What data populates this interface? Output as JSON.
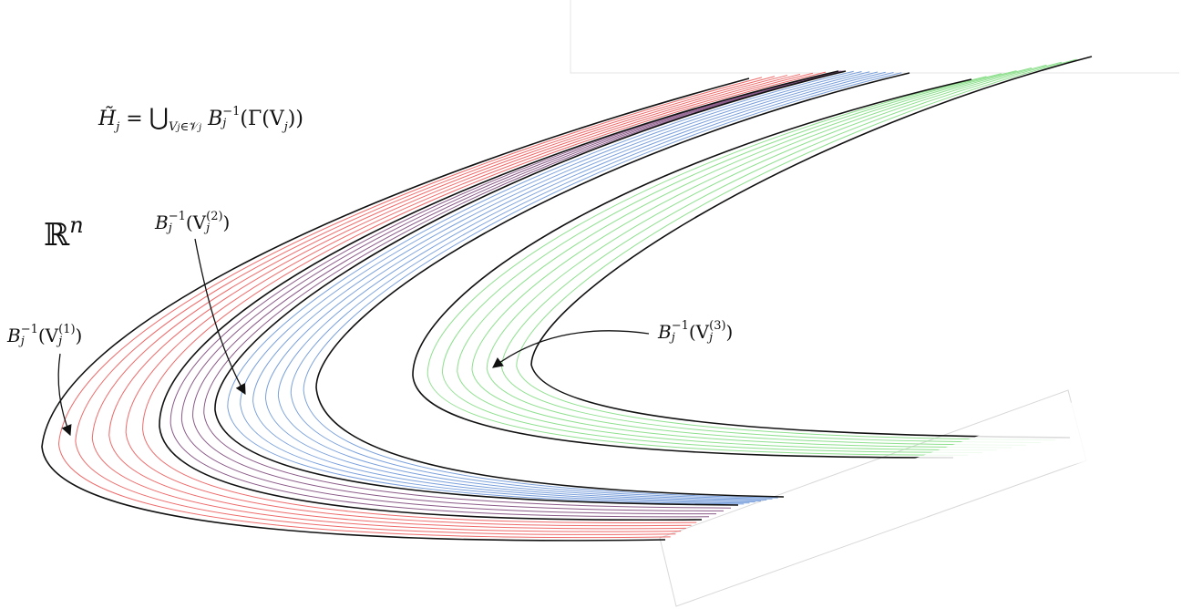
{
  "space_label": {
    "blackboard": "ℝ",
    "exp": "n"
  },
  "union_formula": {
    "lhs": "H̃",
    "lhs_sub": "j",
    "eq": "=",
    "union": "⋃",
    "union_sub_a": "V",
    "union_sub_a_sub": "j",
    "union_sub_in": "∈",
    "union_sub_b": "𝒱",
    "union_sub_b_sub": "j",
    "op": "B",
    "op_sub": "j",
    "op_sup": "−1",
    "arg": "(Γ(V",
    "arg_sub": "j",
    "arg_close": "))"
  },
  "preimage_labels": [
    {
      "op": "B",
      "op_sub": "j",
      "op_sup": "−1",
      "open": "(V",
      "v_sub": "j",
      "v_sup": "(1)",
      "close": ")"
    },
    {
      "op": "B",
      "op_sub": "j",
      "op_sup": "−1",
      "open": "(V",
      "v_sub": "j",
      "v_sup": "(2)",
      "close": ")"
    },
    {
      "op": "B",
      "op_sub": "j",
      "op_sup": "−1",
      "open": "(V",
      "v_sub": "j",
      "v_sup": "(3)",
      "close": ")"
    }
  ],
  "colors": {
    "boundary": "#111111",
    "band1_lines": "#ee6a6a",
    "band2_lines": "#7aa0dc",
    "band2_overlap": "#8a5a88",
    "band3_lines": "#8fe08f"
  }
}
